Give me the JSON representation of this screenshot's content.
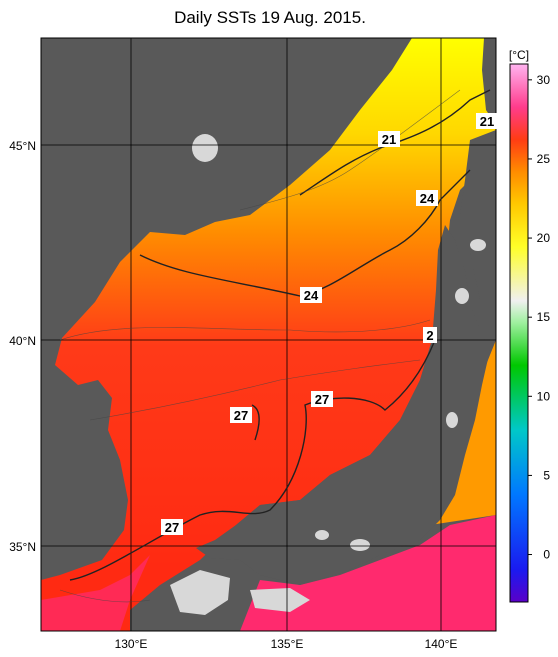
{
  "title": "Daily SSTs 19 Aug. 2015.",
  "colorbar": {
    "unit": "[°C]",
    "min": -3,
    "max": 31,
    "ticks": [
      "0",
      "5",
      "10",
      "15",
      "20",
      "25",
      "30"
    ]
  },
  "axes": {
    "lon_labels": [
      "130°E",
      "135°E",
      "140°E"
    ],
    "lat_labels": [
      "45°N",
      "40°N",
      "35°N"
    ]
  },
  "contour_labels": [
    "21",
    "21",
    "24",
    "24",
    "27",
    "27",
    "27",
    "2"
  ],
  "colors": {
    "land": "#595959",
    "lake_white": "#d8d8d8",
    "warm_south": "#ff3a8a"
  }
}
